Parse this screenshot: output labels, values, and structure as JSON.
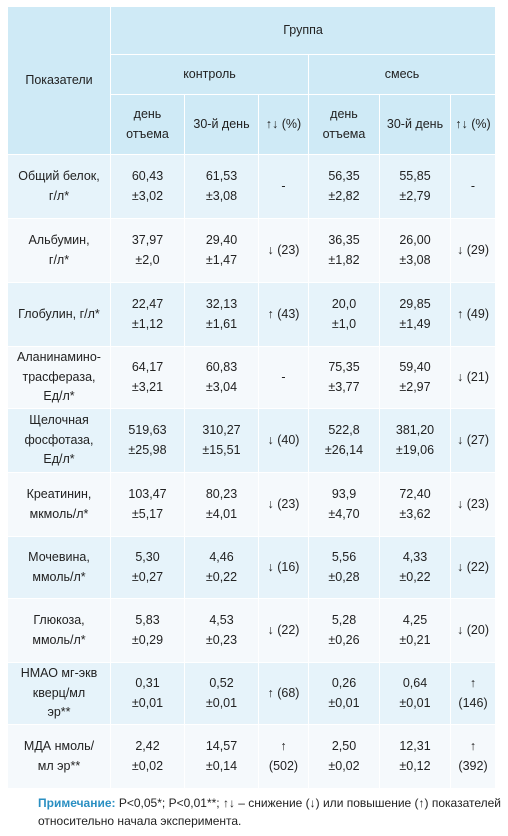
{
  "header": {
    "indicator": "Показатели",
    "group": "Группа",
    "control": "контроль",
    "mix": "смесь",
    "cols": [
      "день отъема",
      "30-й день",
      "↑↓ (%)",
      "день отъема",
      "30-й день",
      "↑↓ (%)"
    ]
  },
  "rows": [
    {
      "label": [
        "Общий белок,",
        "г/л*"
      ],
      "c1": [
        "60,43",
        "±3,02"
      ],
      "c2": [
        "61,53",
        "±3,08"
      ],
      "c3": [
        "-"
      ],
      "c4": [
        "56,35",
        "±2,82"
      ],
      "c5": [
        "55,85",
        "±2,79"
      ],
      "c6": [
        "-"
      ]
    },
    {
      "label": [
        "Альбумин,",
        "г/л*"
      ],
      "c1": [
        "37,97",
        "±2,0"
      ],
      "c2": [
        "29,40",
        "±1,47"
      ],
      "c3": [
        "↓ (23)"
      ],
      "c4": [
        "36,35",
        "±1,82"
      ],
      "c5": [
        "26,00",
        "±3,08"
      ],
      "c6": [
        "↓ (29)"
      ]
    },
    {
      "label": [
        "Глобулин, г/л*"
      ],
      "c1": [
        "22,47",
        "±1,12"
      ],
      "c2": [
        "32,13",
        "±1,61"
      ],
      "c3": [
        "↑ (43)"
      ],
      "c4": [
        "20,0",
        "±1,0"
      ],
      "c5": [
        "29,85",
        "±1,49"
      ],
      "c6": [
        "↑ (49)"
      ]
    },
    {
      "label": [
        "Аланинамино-",
        "трасфераза,",
        "Ед/л*"
      ],
      "c1": [
        "64,17",
        "±3,21"
      ],
      "c2": [
        "60,83",
        "±3,04"
      ],
      "c3": [
        "-"
      ],
      "c4": [
        "75,35",
        "±3,77"
      ],
      "c5": [
        "59,40",
        "±2,97"
      ],
      "c6": [
        "↓ (21)"
      ]
    },
    {
      "label": [
        "Щелочная",
        "фосфотаза,",
        "Ед/л*"
      ],
      "c1": [
        "519,63",
        "±25,98"
      ],
      "c2": [
        "310,27",
        "±15,51"
      ],
      "c3": [
        "↓ (40)"
      ],
      "c4": [
        "522,8",
        "±26,14"
      ],
      "c5": [
        "381,20",
        "±19,06"
      ],
      "c6": [
        "↓ (27)"
      ]
    },
    {
      "label": [
        "Креатинин,",
        "мкмоль/л*"
      ],
      "c1": [
        "103,47",
        "±5,17"
      ],
      "c2": [
        "80,23",
        "±4,01"
      ],
      "c3": [
        "↓ (23)"
      ],
      "c4": [
        "93,9",
        "±4,70"
      ],
      "c5": [
        "72,40",
        "±3,62"
      ],
      "c6": [
        "↓ (23)"
      ]
    },
    {
      "label": [
        "Мочевина,",
        "ммоль/л*"
      ],
      "c1": [
        "5,30",
        "±0,27"
      ],
      "c2": [
        "4,46",
        "±0,22"
      ],
      "c3": [
        "↓ (16)"
      ],
      "c4": [
        "5,56",
        "±0,28"
      ],
      "c5": [
        "4,33",
        "±0,22"
      ],
      "c6": [
        "↓ (22)"
      ]
    },
    {
      "label": [
        "Глюкоза,",
        "ммоль/л*"
      ],
      "c1": [
        "5,83",
        "±0,29"
      ],
      "c2": [
        "4,53",
        "±0,23"
      ],
      "c3": [
        "↓ (22)"
      ],
      "c4": [
        "5,28",
        "±0,26"
      ],
      "c5": [
        "4,25",
        "±0,21"
      ],
      "c6": [
        "↓ (20)"
      ]
    },
    {
      "label": [
        "НМАО мг-экв",
        "кверц/мл",
        "эр**"
      ],
      "c1": [
        "0,31",
        "±0,01"
      ],
      "c2": [
        "0,52",
        "±0,01"
      ],
      "c3": [
        "↑ (68)"
      ],
      "c4": [
        "0,26",
        "±0,01"
      ],
      "c5": [
        "0,64",
        "±0,01"
      ],
      "c6": [
        "↑",
        "(146)"
      ]
    },
    {
      "label": [
        "МДА нмоль/",
        "мл эр**"
      ],
      "c1": [
        "2,42",
        "±0,02"
      ],
      "c2": [
        "14,57",
        "±0,14"
      ],
      "c3": [
        "↑",
        "(502)"
      ],
      "c4": [
        "2,50",
        "±0,02"
      ],
      "c5": [
        "12,31",
        "±0,12"
      ],
      "c6": [
        "↑",
        "(392)"
      ]
    }
  ],
  "note": {
    "head": "Примечание:",
    "text": " P<0,05*; P<0,01**; ↑↓ – снижение (↓) или повышение (↑) показателей относительно начала эксперимента."
  }
}
